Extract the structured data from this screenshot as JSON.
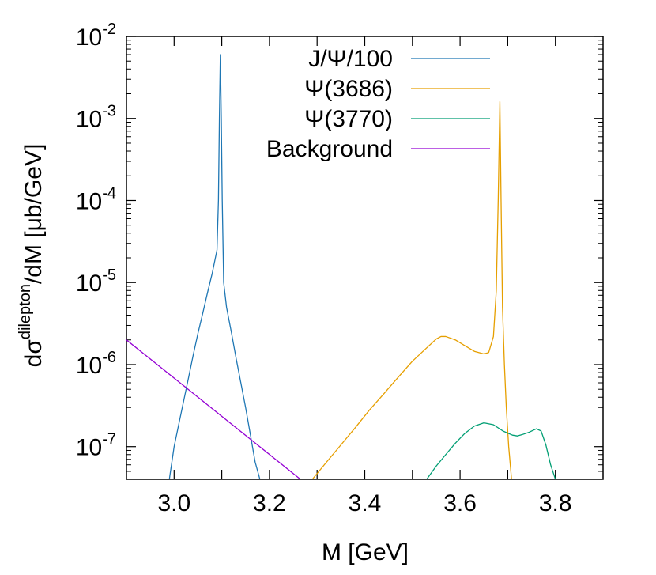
{
  "chart_data": {
    "type": "line",
    "xlabel": "M [GeV]",
    "ylabel": {
      "prefix": "dσ",
      "superscript": "dilepton",
      "suffix": "/dM [μb/GeV]"
    },
    "xlim": [
      2.9,
      3.9
    ],
    "ylim": [
      4e-08,
      0.01
    ],
    "y_scale": "log",
    "x_ticks": [
      {
        "value": 3.0,
        "label": "3.0"
      },
      {
        "value": 3.2,
        "label": "3.2"
      },
      {
        "value": 3.4,
        "label": "3.4"
      },
      {
        "value": 3.6,
        "label": "3.6"
      },
      {
        "value": 3.8,
        "label": "3.8"
      }
    ],
    "y_ticks": [
      {
        "exponent": -2,
        "base": "10",
        "sup": "-2"
      },
      {
        "exponent": -3,
        "base": "10",
        "sup": "-3"
      },
      {
        "exponent": -4,
        "base": "10",
        "sup": "-4"
      },
      {
        "exponent": -5,
        "base": "10",
        "sup": "-5"
      },
      {
        "exponent": -6,
        "base": "10",
        "sup": "-6"
      },
      {
        "exponent": -7,
        "base": "10",
        "sup": "-7"
      }
    ],
    "legend_position": "top-right",
    "grid": false,
    "series": [
      {
        "name": "J/Ψ/100",
        "color": "#1f77b4",
        "points": [
          [
            2.99,
            4e-08
          ],
          [
            3.0,
            1e-07
          ],
          [
            3.01,
            1.9e-07
          ],
          [
            3.02,
            3.6e-07
          ],
          [
            3.03,
            6.8e-07
          ],
          [
            3.04,
            1.3e-06
          ],
          [
            3.05,
            2.4e-06
          ],
          [
            3.06,
            4.2e-06
          ],
          [
            3.07,
            7.5e-06
          ],
          [
            3.08,
            1.3e-05
          ],
          [
            3.09,
            2.5e-05
          ],
          [
            3.093,
            0.0001
          ],
          [
            3.095,
            0.001
          ],
          [
            3.097,
            0.006
          ],
          [
            3.099,
            0.001
          ],
          [
            3.101,
            0.0001
          ],
          [
            3.104,
            1e-05
          ],
          [
            3.11,
            5e-06
          ],
          [
            3.12,
            2.5e-06
          ],
          [
            3.13,
            1.2e-06
          ],
          [
            3.14,
            6e-07
          ],
          [
            3.15,
            3e-07
          ],
          [
            3.16,
            1.4e-07
          ],
          [
            3.17,
            6.5e-08
          ],
          [
            3.18,
            4e-08
          ]
        ]
      },
      {
        "name": "Ψ(3686)",
        "color": "#e69f00",
        "points": [
          [
            3.29,
            4e-08
          ],
          [
            3.32,
            6.5e-08
          ],
          [
            3.35,
            1.05e-07
          ],
          [
            3.38,
            1.7e-07
          ],
          [
            3.41,
            2.8e-07
          ],
          [
            3.44,
            4.4e-07
          ],
          [
            3.47,
            7e-07
          ],
          [
            3.5,
            1.1e-06
          ],
          [
            3.53,
            1.6e-06
          ],
          [
            3.55,
            2.05e-06
          ],
          [
            3.56,
            2.2e-06
          ],
          [
            3.57,
            2.2e-06
          ],
          [
            3.59,
            2e-06
          ],
          [
            3.61,
            1.7e-06
          ],
          [
            3.63,
            1.45e-06
          ],
          [
            3.65,
            1.35e-06
          ],
          [
            3.66,
            1.4e-06
          ],
          [
            3.67,
            2.2e-06
          ],
          [
            3.676,
            8e-06
          ],
          [
            3.68,
            0.0001
          ],
          [
            3.6835,
            0.0016
          ],
          [
            3.686,
            0.0001
          ],
          [
            3.689,
            5e-06
          ],
          [
            3.693,
            1e-06
          ],
          [
            3.697,
            3e-07
          ],
          [
            3.702,
            1e-07
          ],
          [
            3.708,
            4e-08
          ]
        ]
      },
      {
        "name": "Ψ(3770)",
        "color": "#009e73",
        "points": [
          [
            3.53,
            4e-08
          ],
          [
            3.55,
            5.8e-08
          ],
          [
            3.57,
            8e-08
          ],
          [
            3.59,
            1.1e-07
          ],
          [
            3.61,
            1.45e-07
          ],
          [
            3.63,
            1.78e-07
          ],
          [
            3.65,
            1.95e-07
          ],
          [
            3.67,
            1.85e-07
          ],
          [
            3.69,
            1.55e-07
          ],
          [
            3.71,
            1.38e-07
          ],
          [
            3.72,
            1.35e-07
          ],
          [
            3.73,
            1.4e-07
          ],
          [
            3.745,
            1.5e-07
          ],
          [
            3.76,
            1.65e-07
          ],
          [
            3.77,
            1.55e-07
          ],
          [
            3.78,
            1.05e-07
          ],
          [
            3.79,
            6e-08
          ],
          [
            3.8,
            4e-08
          ]
        ]
      },
      {
        "name": "Background",
        "color": "#9400d3",
        "points": [
          [
            2.9,
            2e-06
          ],
          [
            3.265,
            4e-08
          ]
        ]
      }
    ]
  }
}
